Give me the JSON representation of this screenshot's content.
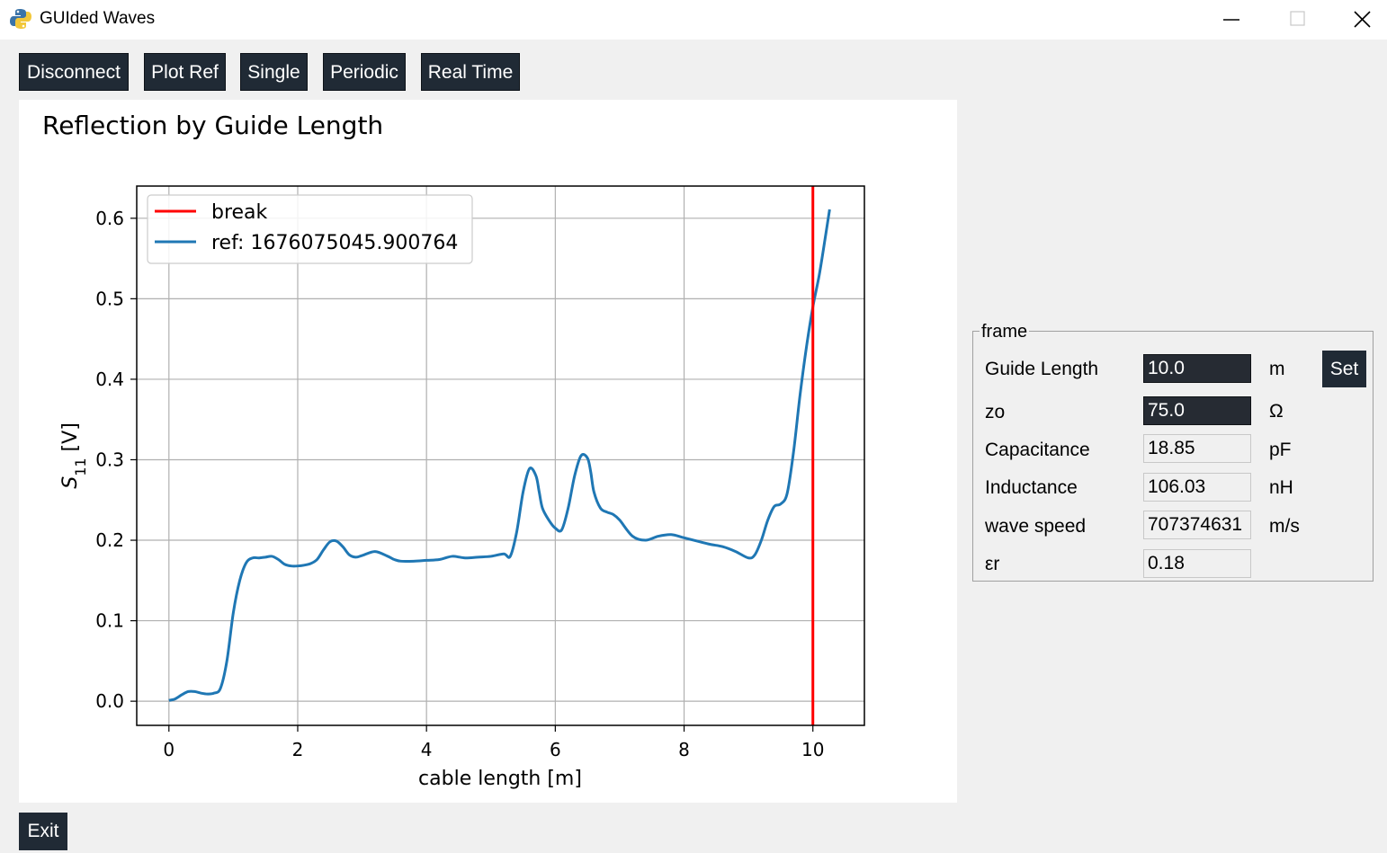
{
  "window": {
    "title": "GUIded Waves"
  },
  "toolbar": {
    "disconnect": "Disconnect",
    "plot_ref": "Plot Ref",
    "single": "Single",
    "periodic": "Periodic",
    "real_time": "Real Time"
  },
  "frame": {
    "label": "frame",
    "guide_length": {
      "label": "Guide Length",
      "value": "10.0",
      "unit": "m"
    },
    "zo": {
      "label": "zo",
      "value": "75.0",
      "unit": "Ω"
    },
    "capacitance": {
      "label": "Capacitance",
      "value": "18.85",
      "unit": "pF"
    },
    "inductance": {
      "label": "Inductance",
      "value": "106.03",
      "unit": "nH"
    },
    "wave_speed": {
      "label": "wave speed",
      "value": "707374631",
      "unit": "m/s"
    },
    "er": {
      "label": "εr",
      "value": "0.18"
    },
    "set_label": "Set"
  },
  "exit_label": "Exit",
  "chart_data": {
    "type": "line",
    "title": "Reflection by Guide Length",
    "xlabel": "cable length [m]",
    "ylabel": "S11 [V]",
    "ylabel_main": "S",
    "ylabel_sub": "11",
    "ylabel_rest": " [V]",
    "xlim": [
      -0.5,
      10.8
    ],
    "ylim": [
      -0.03,
      0.64
    ],
    "xticks": [
      0,
      2,
      4,
      6,
      8,
      10
    ],
    "yticks": [
      0.0,
      0.1,
      0.2,
      0.3,
      0.4,
      0.5,
      0.6
    ],
    "xtick_labels": [
      "0",
      "2",
      "4",
      "6",
      "8",
      "10"
    ],
    "ytick_labels": [
      "0.0",
      "0.1",
      "0.2",
      "0.3",
      "0.4",
      "0.5",
      "0.6"
    ],
    "grid": true,
    "legend_position": "top-left",
    "legend": [
      "break",
      "ref: 1676075045.900764"
    ],
    "vline": {
      "name": "break",
      "x": 10.0,
      "color": "#ff0000"
    },
    "series": [
      {
        "name": "ref: 1676075045.900764",
        "color": "#1f77b4",
        "x": [
          0,
          0.1,
          0.2,
          0.3,
          0.4,
          0.5,
          0.6,
          0.7,
          0.8,
          0.9,
          1.0,
          1.1,
          1.2,
          1.3,
          1.4,
          1.5,
          1.6,
          1.7,
          1.8,
          1.9,
          2.0,
          2.1,
          2.2,
          2.3,
          2.4,
          2.5,
          2.6,
          2.7,
          2.8,
          2.9,
          3.0,
          3.2,
          3.4,
          3.5,
          3.6,
          3.8,
          4.0,
          4.2,
          4.4,
          4.6,
          4.8,
          5.0,
          5.2,
          5.3,
          5.4,
          5.5,
          5.6,
          5.7,
          5.75,
          5.8,
          5.9,
          6.0,
          6.1,
          6.2,
          6.3,
          6.4,
          6.5,
          6.55,
          6.6,
          6.7,
          6.8,
          6.9,
          7.0,
          7.2,
          7.4,
          7.6,
          7.8,
          8.0,
          8.2,
          8.4,
          8.6,
          8.8,
          9.0,
          9.1,
          9.2,
          9.3,
          9.4,
          9.5,
          9.6,
          9.7,
          9.8,
          9.9,
          10.0,
          10.1,
          10.2,
          10.26
        ],
        "y": [
          0.001,
          0.003,
          0.008,
          0.012,
          0.012,
          0.01,
          0.009,
          0.01,
          0.016,
          0.05,
          0.11,
          0.15,
          0.172,
          0.178,
          0.178,
          0.179,
          0.18,
          0.176,
          0.17,
          0.168,
          0.168,
          0.169,
          0.171,
          0.176,
          0.188,
          0.198,
          0.199,
          0.192,
          0.182,
          0.179,
          0.181,
          0.186,
          0.18,
          0.176,
          0.174,
          0.174,
          0.175,
          0.176,
          0.18,
          0.178,
          0.179,
          0.18,
          0.183,
          0.18,
          0.21,
          0.26,
          0.289,
          0.28,
          0.26,
          0.24,
          0.225,
          0.215,
          0.213,
          0.24,
          0.28,
          0.305,
          0.302,
          0.285,
          0.26,
          0.24,
          0.235,
          0.232,
          0.225,
          0.205,
          0.2,
          0.205,
          0.207,
          0.203,
          0.199,
          0.195,
          0.192,
          0.186,
          0.178,
          0.182,
          0.2,
          0.225,
          0.242,
          0.245,
          0.258,
          0.31,
          0.38,
          0.44,
          0.49,
          0.53,
          0.58,
          0.611
        ]
      }
    ]
  }
}
